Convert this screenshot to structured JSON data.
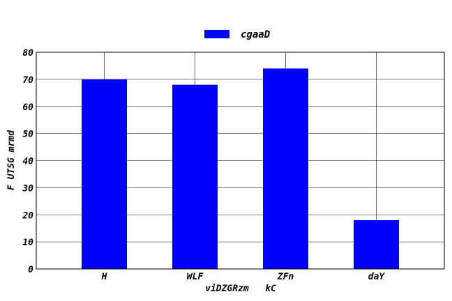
{
  "chart_data": {
    "type": "bar",
    "title": "",
    "xlabel": "viDZGRzm   kC",
    "ylabel": "F UTSG mrmd",
    "categories": [
      "H",
      "WLF",
      "ZFn",
      "daY"
    ],
    "series": [
      {
        "name": "cgaaD",
        "values": [
          70,
          68,
          74,
          18
        ],
        "color": "#0000ff"
      }
    ],
    "ylim": [
      0,
      80
    ],
    "yticks": [
      0,
      10,
      20,
      30,
      40,
      50,
      60,
      70,
      80
    ],
    "grid": true,
    "legend_position": "top-center"
  }
}
